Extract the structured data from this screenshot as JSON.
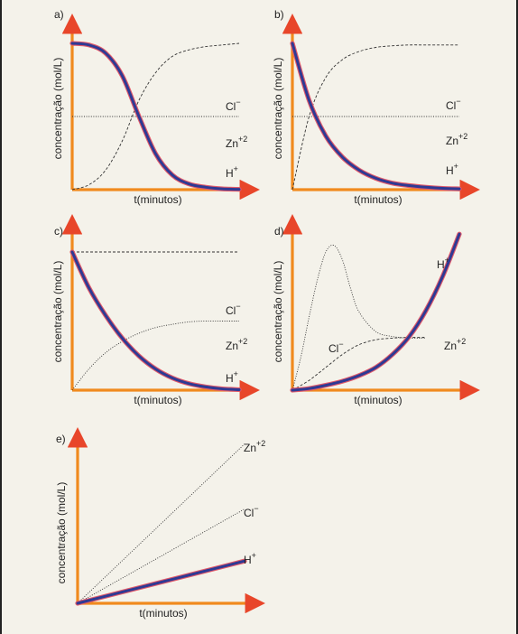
{
  "chart_data": [
    {
      "type": "line",
      "panel_label": "a)",
      "xlabel": "t(minutos)",
      "ylabel": "concentração (mol/L)",
      "xlim": [
        0,
        10
      ],
      "ylim": [
        0,
        10
      ],
      "series": [
        {
          "name": "Cl",
          "sup": "−",
          "style": "dashed",
          "x": [
            0,
            1,
            2,
            3,
            4,
            5,
            6,
            7,
            8,
            9,
            10
          ],
          "y": [
            0,
            0.3,
            1.2,
            3.0,
            5.5,
            7.2,
            8.2,
            8.6,
            8.8,
            8.9,
            9.0
          ]
        },
        {
          "name": "Zn",
          "sup": "+2",
          "style": "dotted",
          "x": [
            0,
            10
          ],
          "y": [
            4.5,
            4.5
          ]
        },
        {
          "name": "H",
          "sup": "+",
          "style": "thick",
          "x": [
            0,
            1,
            2,
            3,
            4,
            5,
            6,
            7,
            8,
            9,
            10
          ],
          "y": [
            9.0,
            8.9,
            8.4,
            7.0,
            4.5,
            2.2,
            0.9,
            0.35,
            0.15,
            0.05,
            0.02
          ]
        }
      ]
    },
    {
      "type": "line",
      "panel_label": "b)",
      "xlabel": "t(minutos)",
      "ylabel": "concentração (mol/L)",
      "xlim": [
        0,
        10
      ],
      "ylim": [
        0,
        10
      ],
      "series": [
        {
          "name": "Cl",
          "sup": "−",
          "style": "dashed",
          "x": [
            0,
            1,
            2,
            3,
            4,
            5,
            6,
            7,
            8,
            9,
            10
          ],
          "y": [
            0,
            4.5,
            6.9,
            8.0,
            8.5,
            8.75,
            8.85,
            8.9,
            8.9,
            8.9,
            8.9
          ]
        },
        {
          "name": "Zn",
          "sup": "+2",
          "style": "dotted",
          "x": [
            0,
            10
          ],
          "y": [
            4.5,
            4.5
          ]
        },
        {
          "name": "H",
          "sup": "+",
          "style": "thick",
          "x": [
            0,
            1,
            2,
            3,
            4,
            5,
            6,
            7,
            8,
            9,
            10
          ],
          "y": [
            9.0,
            5.5,
            3.3,
            2.0,
            1.2,
            0.7,
            0.4,
            0.25,
            0.15,
            0.08,
            0.05
          ]
        }
      ]
    },
    {
      "type": "line",
      "panel_label": "c)",
      "xlabel": "t(minutos)",
      "ylabel": "concentração (mol/L)",
      "xlim": [
        0,
        10
      ],
      "ylim": [
        0,
        10
      ],
      "series": [
        {
          "name": "Cl",
          "sup": "−",
          "style": "dashed",
          "x": [
            0,
            10
          ],
          "y": [
            8.5,
            8.5
          ]
        },
        {
          "name": "Zn",
          "sup": "+2",
          "style": "dotted",
          "x": [
            0,
            1,
            2,
            3,
            4,
            5,
            6,
            7,
            8,
            9,
            10
          ],
          "y": [
            0,
            1.3,
            2.3,
            3.0,
            3.5,
            3.85,
            4.05,
            4.2,
            4.25,
            4.25,
            4.25
          ]
        },
        {
          "name": "H",
          "sup": "+",
          "style": "thick",
          "x": [
            0,
            1,
            2,
            3,
            4,
            5,
            6,
            7,
            8,
            9,
            10
          ],
          "y": [
            8.5,
            6.3,
            4.6,
            3.2,
            2.1,
            1.3,
            0.75,
            0.4,
            0.2,
            0.08,
            0.03
          ]
        }
      ]
    },
    {
      "type": "line",
      "panel_label": "d)",
      "xlabel": "t(minutos)",
      "ylabel": "concentração (mol/L)",
      "xlim": [
        0,
        10
      ],
      "ylim": [
        0,
        10
      ],
      "series": [
        {
          "name": "Cl",
          "sup": "−",
          "style": "dotted",
          "x": [
            0,
            0.5,
            1,
            1.5,
            2,
            2.5,
            3,
            3.5,
            4,
            5,
            6,
            7,
            8
          ],
          "y": [
            0,
            2.0,
            4.5,
            6.8,
            8.5,
            8.9,
            8.0,
            6.2,
            4.8,
            3.6,
            3.3,
            3.2,
            3.2
          ]
        },
        {
          "name": "Zn",
          "sup": "+2",
          "style": "dashed",
          "x": [
            0,
            1,
            2,
            3,
            4,
            5,
            6,
            7,
            8
          ],
          "y": [
            0,
            0.6,
            1.4,
            2.2,
            2.8,
            3.1,
            3.2,
            3.25,
            3.25
          ]
        },
        {
          "name": "H",
          "sup": "+",
          "style": "thick",
          "x": [
            0,
            1,
            2,
            3,
            4,
            5,
            6,
            7,
            8,
            9,
            10
          ],
          "y": [
            0,
            0.1,
            0.3,
            0.55,
            0.9,
            1.4,
            2.2,
            3.3,
            4.9,
            7.0,
            9.6
          ]
        }
      ]
    },
    {
      "type": "line",
      "panel_label": "e)",
      "xlabel": "t(minutos)",
      "ylabel": "concentração (mol/L)",
      "xlim": [
        0,
        10
      ],
      "ylim": [
        0,
        10
      ],
      "series": [
        {
          "name": "Zn",
          "sup": "+2",
          "style": "dotted",
          "x": [
            0,
            10
          ],
          "y": [
            0,
            9.8
          ]
        },
        {
          "name": "Cl",
          "sup": "−",
          "style": "dotted",
          "x": [
            0,
            10
          ],
          "y": [
            0,
            5.8
          ]
        },
        {
          "name": "H",
          "sup": "+",
          "style": "thick",
          "x": [
            0,
            10
          ],
          "y": [
            0,
            2.6
          ]
        }
      ]
    }
  ]
}
